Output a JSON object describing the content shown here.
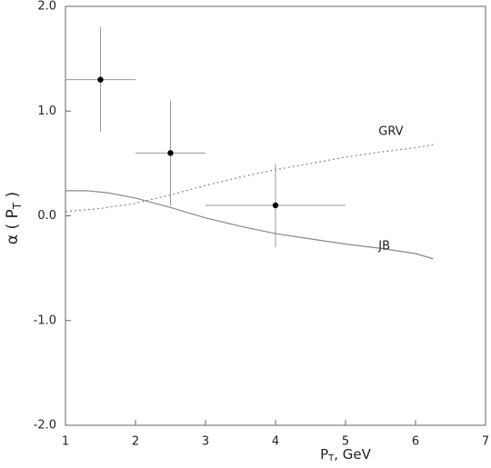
{
  "chart_data": {
    "type": "scatter",
    "x_label": {
      "main": "P",
      "sub": "T",
      "end": ", GeV"
    },
    "y_label": {
      "main": "α ( P",
      "sub": "T",
      "end": " )"
    },
    "xlim": [
      1,
      7
    ],
    "ylim": [
      -2.0,
      2.0
    ],
    "xticks": [
      1,
      2,
      3,
      4,
      5,
      6,
      7
    ],
    "yticks": [
      {
        "value": 2.0,
        "label": "2.0"
      },
      {
        "value": 1.0,
        "label": "1.0"
      },
      {
        "value": 0.0,
        "label": "0.0"
      },
      {
        "value": -1.0,
        "label": "-1.0"
      },
      {
        "value": -2.0,
        "label": "-2.0"
      }
    ],
    "points": {
      "color": "#000000",
      "x": [
        1.5,
        2.5,
        4.0
      ],
      "y": [
        1.3,
        0.6,
        0.1
      ],
      "xerr": [
        0.5,
        0.5,
        1.0
      ],
      "yerr": [
        0.5,
        0.5,
        0.4
      ],
      "errcolor": "#999999"
    },
    "lines": [
      {
        "name": "GRV",
        "style": "dotted",
        "color": "#888888",
        "x": [
          1,
          1.5,
          2,
          2.5,
          3,
          3.5,
          4,
          4.5,
          5,
          5.5,
          6,
          6.25
        ],
        "y": [
          0.04,
          0.07,
          0.12,
          0.2,
          0.29,
          0.37,
          0.44,
          0.5,
          0.56,
          0.61,
          0.65,
          0.68
        ]
      },
      {
        "name": "JB",
        "style": "solid",
        "color": "#888888",
        "x": [
          1,
          1.3,
          1.6,
          2,
          2.5,
          3,
          3.5,
          4,
          4.5,
          5,
          5.5,
          6,
          6.25
        ],
        "y": [
          0.24,
          0.24,
          0.22,
          0.17,
          0.08,
          -0.02,
          -0.1,
          -0.17,
          -0.22,
          -0.27,
          -0.31,
          -0.36,
          -0.41
        ]
      }
    ]
  }
}
